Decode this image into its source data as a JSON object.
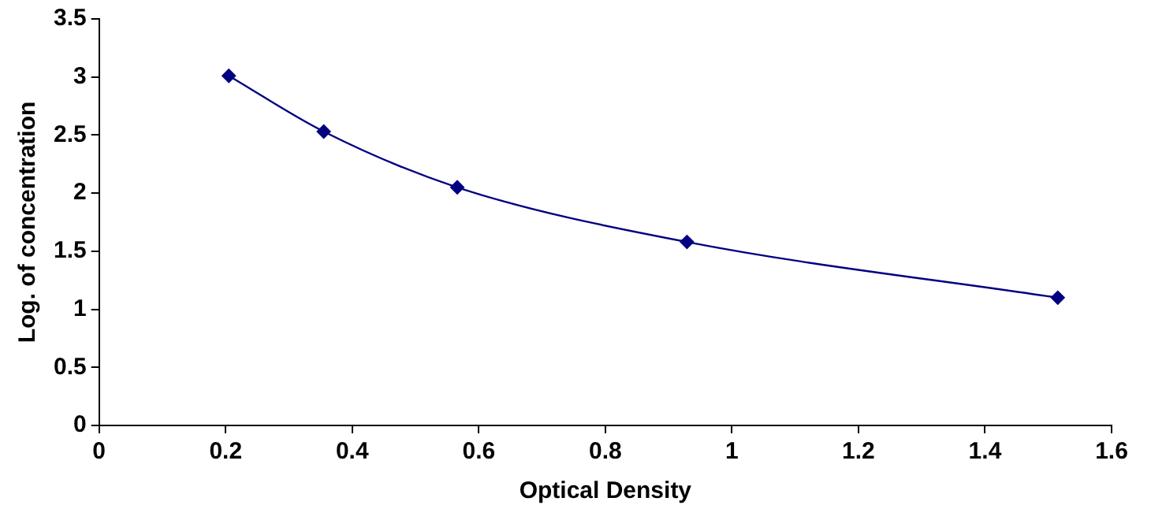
{
  "chart_data": {
    "type": "line",
    "xlabel": "Optical Density",
    "ylabel": "Log. of concentration",
    "x": [
      0.205,
      0.355,
      0.566,
      0.929,
      1.515
    ],
    "series": [
      {
        "color": "#000080",
        "values": [
          3.01,
          2.53,
          2.05,
          1.58,
          1.1
        ]
      }
    ],
    "xlim": [
      0,
      1.6
    ],
    "xticks": [
      0,
      0.2,
      0.4,
      0.6,
      0.8,
      1,
      1.2,
      1.4,
      1.6
    ],
    "ylim": [
      0,
      3.5
    ],
    "yticks": [
      0,
      0.5,
      1,
      1.5,
      2,
      2.5,
      3,
      3.5
    ],
    "grid": false,
    "legend": false,
    "marker": "diamond",
    "line_style": "solid"
  }
}
